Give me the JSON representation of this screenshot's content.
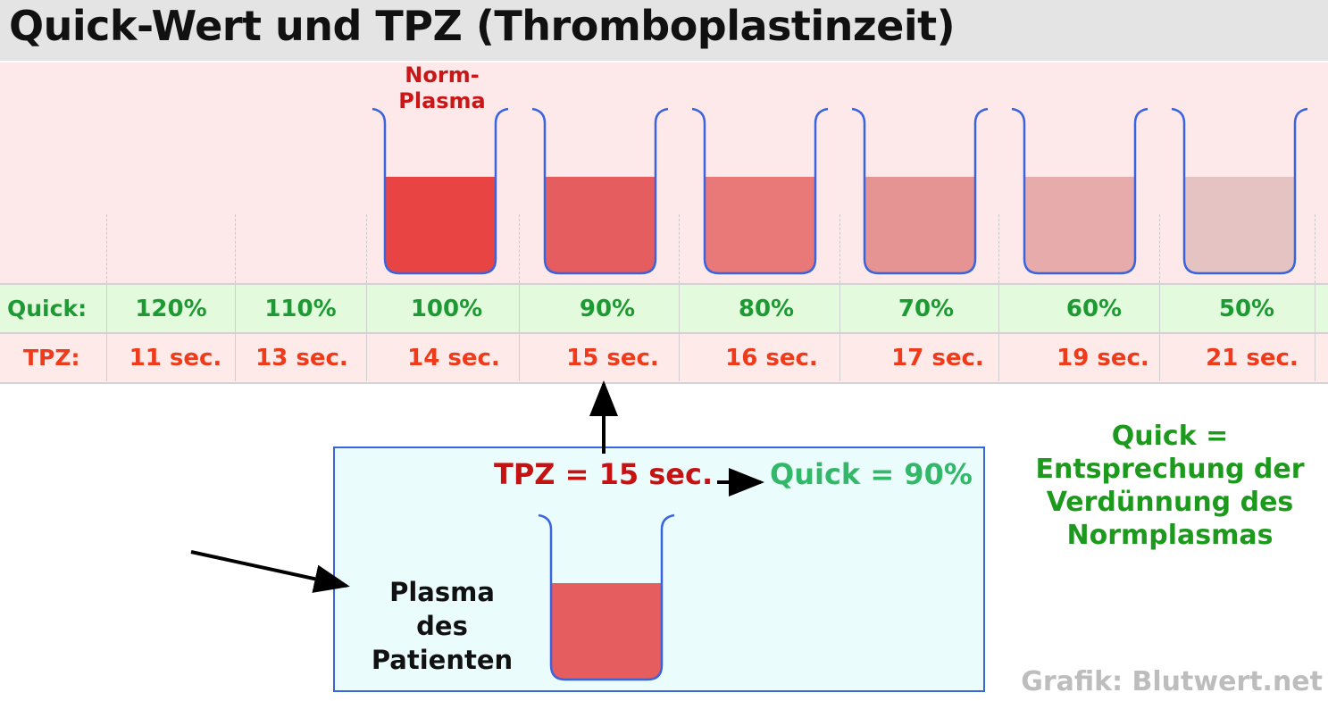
{
  "title": "Quick-Wert und TPZ (Thromboplastinzeit)",
  "norm_plasma_label": [
    "Norm-",
    "Plasma"
  ],
  "table": {
    "quick_label": "Quick:",
    "tpz_label": "TPZ:",
    "quick_values": [
      "120%",
      "110%",
      "100%",
      "90%",
      "80%",
      "70%",
      "60%",
      "50%"
    ],
    "tpz_values": [
      "11 sec.",
      "13 sec.",
      "14 sec.",
      "15 sec.",
      "16 sec.",
      "17 sec.",
      "19 sec.",
      "21 sec."
    ]
  },
  "beakers": [
    {
      "quick": "100%",
      "liquid_color": "#e84444"
    },
    {
      "quick": "90%",
      "liquid_color": "#e65d5f"
    },
    {
      "quick": "80%",
      "liquid_color": "#e97878"
    },
    {
      "quick": "70%",
      "liquid_color": "#e69393"
    },
    {
      "quick": "60%",
      "liquid_color": "#e8abac"
    },
    {
      "quick": "50%",
      "liquid_color": "#e5c3c3"
    }
  ],
  "patient": {
    "tpz_result": "TPZ = 15 sec.",
    "quick_result": "Quick = 90%",
    "label": [
      "Plasma",
      "des",
      "Patienten"
    ],
    "liquid_color": "#e65d5f"
  },
  "explanation": [
    "Quick =",
    "Entsprechung der",
    "Verdünnung des",
    "Normplasmas"
  ],
  "credit": "Grafik: Blutwert.net",
  "colors": {
    "beaker_outline": "#3a63de",
    "quick_green": "#1d9a34",
    "tpz_red": "#ee3b1c",
    "result_red": "#c51313",
    "result_green": "#33b86a"
  }
}
